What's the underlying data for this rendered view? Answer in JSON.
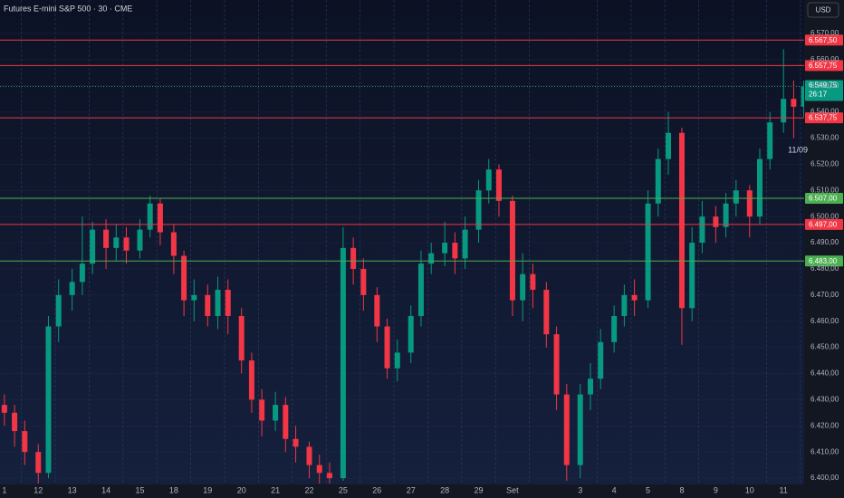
{
  "chart_data": {
    "type": "candlestick",
    "title": "Futures E-mini S&P 500 · 30 · CME",
    "currency": "USD",
    "annotation": "11/09",
    "up_color": "#089981",
    "down_color": "#f23645",
    "grid": true,
    "xlim": [
      -0.13,
      23.61
    ],
    "ylim": [
      6397.6,
      6582.8
    ],
    "xticks": [
      {
        "value": 0,
        "label": "1"
      },
      {
        "value": 1,
        "label": "12"
      },
      {
        "value": 2,
        "label": "13"
      },
      {
        "value": 3,
        "label": "14"
      },
      {
        "value": 4,
        "label": "15"
      },
      {
        "value": 5,
        "label": "18"
      },
      {
        "value": 6,
        "label": "19"
      },
      {
        "value": 7,
        "label": "20"
      },
      {
        "value": 8,
        "label": "21"
      },
      {
        "value": 9,
        "label": "22"
      },
      {
        "value": 10,
        "label": "25"
      },
      {
        "value": 11,
        "label": "26"
      },
      {
        "value": 12,
        "label": "27"
      },
      {
        "value": 13,
        "label": "28"
      },
      {
        "value": 14,
        "label": "29"
      },
      {
        "value": 15,
        "label": "Set"
      },
      {
        "value": 17,
        "label": "3"
      },
      {
        "value": 18,
        "label": "4"
      },
      {
        "value": 19,
        "label": "5"
      },
      {
        "value": 20,
        "label": "8"
      },
      {
        "value": 21,
        "label": "9"
      },
      {
        "value": 22,
        "label": "10"
      },
      {
        "value": 23,
        "label": "11"
      }
    ],
    "yticks": [
      {
        "value": 6400,
        "label": "6.400,00"
      },
      {
        "value": 6410,
        "label": "6.410,00"
      },
      {
        "value": 6420,
        "label": "6.420,00"
      },
      {
        "value": 6430,
        "label": "6.430,00"
      },
      {
        "value": 6440,
        "label": "6.440,00"
      },
      {
        "value": 6450,
        "label": "6.450,00"
      },
      {
        "value": 6460,
        "label": "6.460,00"
      },
      {
        "value": 6470,
        "label": "6.470,00"
      },
      {
        "value": 6480,
        "label": "6.480,00"
      },
      {
        "value": 6490,
        "label": "6.490,00"
      },
      {
        "value": 6500,
        "label": "6.500,00"
      },
      {
        "value": 6510,
        "label": "6.510,00"
      },
      {
        "value": 6520,
        "label": "6.520,00"
      },
      {
        "value": 6530,
        "label": "6.530,00"
      },
      {
        "value": 6540,
        "label": "6.540,00"
      },
      {
        "value": 6550,
        "label": "6.550,00"
      },
      {
        "value": 6560,
        "label": "6.560,00"
      },
      {
        "value": 6570,
        "label": "6.570,00"
      }
    ],
    "levels": [
      {
        "value": 6567.5,
        "label": "6.567,50",
        "color": "#f23645"
      },
      {
        "value": 6557.75,
        "label": "6.557,75",
        "color": "#f23645"
      },
      {
        "value": 6537.75,
        "label": "6.537,75",
        "color": "#f23645"
      },
      {
        "value": 6507,
        "label": "6.507,00",
        "color": "#4caf50"
      },
      {
        "value": 6497,
        "label": "6.497,00",
        "color": "#f23645"
      },
      {
        "value": 6483,
        "label": "6.483,00",
        "color": "#4caf50"
      }
    ],
    "last": {
      "value": 6549.75,
      "label": "6.549,75",
      "countdown": "26:17",
      "color": "#089981"
    },
    "x": [
      0,
      0.3,
      0.6,
      1,
      1.3,
      1.6,
      2,
      2.3,
      2.6,
      3,
      3.3,
      3.6,
      4,
      4.3,
      4.6,
      5,
      5.3,
      5.6,
      6,
      6.3,
      6.6,
      7,
      7.3,
      7.6,
      8,
      8.3,
      8.6,
      9,
      9.3,
      9.6,
      10,
      10.3,
      10.6,
      11,
      11.3,
      11.6,
      12,
      12.3,
      12.6,
      13,
      13.3,
      13.6,
      14,
      14.3,
      14.6,
      15,
      15.3,
      15.6,
      16,
      16.3,
      16.6,
      17,
      17.3,
      17.6,
      18,
      18.3,
      18.6,
      19,
      19.3,
      19.6,
      20,
      20.3,
      20.6,
      21,
      21.3,
      21.6,
      22,
      22.3,
      22.6,
      23,
      23.3,
      23.6
    ],
    "open": [
      6428,
      6425,
      6418,
      6410,
      6402,
      6458,
      6470,
      6475,
      6482,
      6495,
      6488,
      6492,
      6487,
      6495,
      6505,
      6494,
      6485,
      6468,
      6470,
      6462,
      6472,
      6462,
      6445,
      6430,
      6422,
      6428,
      6415,
      6412,
      6405,
      6402,
      6400,
      6488,
      6480,
      6470,
      6458,
      6442,
      6448,
      6462,
      6482,
      6486,
      6490,
      6484,
      6495,
      6510,
      6518,
      6506,
      6468,
      6478,
      6472,
      6455,
      6432,
      6405,
      6432,
      6438,
      6452,
      6462,
      6470,
      6468,
      6505,
      6522,
      6532,
      6465,
      6490,
      6500,
      6496,
      6505,
      6510,
      6500,
      6522,
      6536,
      6545,
      6542
    ],
    "high": [
      6432,
      6428,
      6422,
      6413,
      6462,
      6476,
      6480,
      6500,
      6498,
      6499,
      6497,
      6496,
      6499,
      6508,
      6507,
      6497,
      6487,
      6476,
      6474,
      6477,
      6476,
      6465,
      6448,
      6434,
      6433,
      6431,
      6420,
      6414,
      6409,
      6406,
      6496,
      6492,
      6484,
      6473,
      6461,
      6453,
      6466,
      6487,
      6490,
      6498,
      6494,
      6500,
      6514,
      6522,
      6520,
      6508,
      6486,
      6482,
      6475,
      6458,
      6436,
      6436,
      6444,
      6457,
      6466,
      6474,
      6476,
      6510,
      6526,
      6540,
      6534,
      6496,
      6506,
      6504,
      6509,
      6514,
      6512,
      6526,
      6540,
      6564,
      6552,
      6552
    ],
    "low": [
      6420,
      6412,
      6405,
      6398,
      6400,
      6452,
      6464,
      6470,
      6478,
      6480,
      6483,
      6482,
      6484,
      6492,
      6489,
      6478,
      6462,
      6460,
      6458,
      6457,
      6455,
      6440,
      6425,
      6416,
      6418,
      6410,
      6406,
      6400,
      6398,
      6398,
      6399,
      6474,
      6464,
      6452,
      6438,
      6437,
      6444,
      6458,
      6478,
      6481,
      6478,
      6480,
      6490,
      6505,
      6500,
      6462,
      6460,
      6465,
      6450,
      6426,
      6399,
      6400,
      6426,
      6434,
      6448,
      6458,
      6462,
      6465,
      6500,
      6516,
      6451,
      6460,
      6486,
      6490,
      6492,
      6500,
      6492,
      6497,
      6518,
      6532,
      6530,
      6538
    ],
    "close": [
      6425,
      6418,
      6410,
      6402,
      6458,
      6470,
      6475,
      6482,
      6495,
      6488,
      6492,
      6487,
      6495,
      6505,
      6494,
      6485,
      6468,
      6470,
      6462,
      6472,
      6462,
      6445,
      6430,
      6422,
      6428,
      6415,
      6412,
      6405,
      6402,
      6400,
      6488,
      6480,
      6470,
      6458,
      6442,
      6448,
      6462,
      6482,
      6486,
      6490,
      6484,
      6495,
      6510,
      6518,
      6506,
      6468,
      6478,
      6472,
      6455,
      6432,
      6405,
      6432,
      6438,
      6452,
      6462,
      6470,
      6468,
      6505,
      6522,
      6532,
      6465,
      6490,
      6500,
      6496,
      6505,
      6510,
      6500,
      6522,
      6536,
      6545,
      6542,
      6549.75
    ]
  }
}
